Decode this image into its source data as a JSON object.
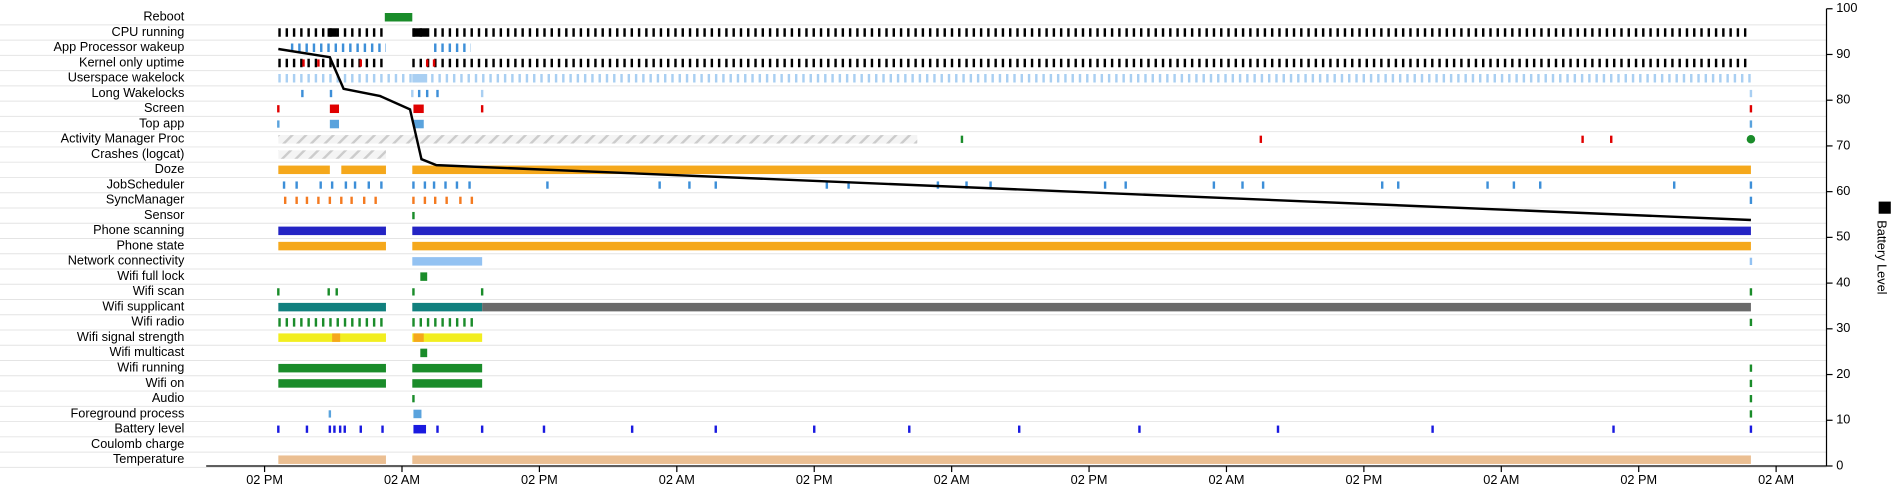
{
  "chart_data": {
    "type": "timeline",
    "xlim": [
      -5.1,
      136.4
    ],
    "xticks": [
      {
        "value": 0,
        "label": "02 PM"
      },
      {
        "value": 12,
        "label": "02 AM"
      },
      {
        "value": 24,
        "label": "02 PM"
      },
      {
        "value": 36,
        "label": "02 AM"
      },
      {
        "value": 48,
        "label": "02 PM"
      },
      {
        "value": 60,
        "label": "02 AM"
      },
      {
        "value": 72,
        "label": "02 PM"
      },
      {
        "value": 84,
        "label": "02 AM"
      },
      {
        "value": 96,
        "label": "02 PM"
      },
      {
        "value": 108,
        "label": "02 AM"
      },
      {
        "value": 120,
        "label": "02 PM"
      },
      {
        "value": 132,
        "label": "02 AM"
      }
    ],
    "y2lim": [
      0,
      100
    ],
    "y2ticks": [
      0,
      10,
      20,
      30,
      40,
      50,
      60,
      70,
      80,
      90,
      100
    ],
    "series": [
      {
        "name": "Battery Level",
        "color": "#000000",
        "axis": "y2",
        "x": [
          1.2,
          5.7,
          6.9,
          10.1,
          12.7,
          13.7,
          15.0,
          129.8
        ],
        "values": [
          91.2,
          89.4,
          82.5,
          80.9,
          78,
          67.1,
          65.8,
          53.8
        ]
      }
    ],
    "rows": [
      {
        "name": "Reboot",
        "layers": [
          {
            "color": "#1a8c2a",
            "segments": [
              [
                10.5,
                12.9
              ]
            ]
          }
        ]
      },
      {
        "name": "CPU running",
        "layers": [
          {
            "color": "#000000",
            "dashed": true,
            "segments": [
              [
                1.2,
                10.6
              ],
              [
                12.9,
                129.4
              ]
            ]
          },
          {
            "color": "#000000",
            "segments": [
              [
                5.5,
                6.3
              ],
              [
                13.0,
                14.2
              ]
            ]
          }
        ]
      },
      {
        "name": "App Processor wakeup",
        "layers": [
          {
            "color": "#3d8fd8",
            "dashed": true,
            "segments": [
              [
                2.3,
                10.6
              ],
              [
                14.8,
                18.0
              ]
            ]
          }
        ]
      },
      {
        "name": "Kernel only uptime",
        "layers": [
          {
            "color": "#000000",
            "dashed": true,
            "segments": [
              [
                1.2,
                10.6
              ],
              [
                12.9,
                129.8
              ]
            ]
          },
          {
            "color": "#e00000",
            "events": [
              3.4,
              4.7,
              8.4,
              14.2,
              14.8
            ]
          }
        ]
      },
      {
        "name": "Userspace wakelock",
        "layers": [
          {
            "color": "#a9cff2",
            "dashed": true,
            "segments": [
              [
                1.2,
                129.8
              ]
            ]
          },
          {
            "color": "#a9cff2",
            "segments": [
              [
                12.9,
                14.2
              ]
            ]
          }
        ]
      },
      {
        "name": "Long Wakelocks",
        "layers": [
          {
            "color": "#3d8fd8",
            "events": [
              3.3,
              5.8,
              13.5,
              14.2,
              15.1
            ]
          },
          {
            "color": "#a9cff2",
            "events": [
              12.9,
              19.0,
              129.8
            ]
          }
        ]
      },
      {
        "name": "Screen",
        "layers": [
          {
            "color": "#e00000",
            "segments": [
              [
                5.7,
                6.5
              ],
              [
                13.0,
                13.9
              ]
            ],
            "events": [
              1.2,
              19.0,
              129.8
            ]
          }
        ]
      },
      {
        "name": "Top app",
        "layers": [
          {
            "color": "#5aa3dd",
            "segments": [
              [
                5.7,
                6.5
              ],
              [
                13.0,
                13.9
              ]
            ],
            "events": [
              1.2,
              129.8
            ]
          }
        ]
      },
      {
        "name": "Activity Manager Proc",
        "layers": [
          {
            "color": "#cccccc",
            "hatched": true,
            "segments": [
              [
                1.2,
                57.0
              ]
            ]
          },
          {
            "color": "#1a8c2a",
            "events": [
              60.9
            ]
          },
          {
            "color": "#e00000",
            "events": [
              87.0,
              115.1,
              117.6
            ]
          },
          {
            "color": "#1a8c2a",
            "shape": "circle",
            "events": [
              129.8
            ]
          }
        ]
      },
      {
        "name": "Crashes (logcat)",
        "layers": [
          {
            "color": "#cccccc",
            "hatched": true,
            "segments": [
              [
                1.2,
                10.6
              ]
            ]
          }
        ]
      },
      {
        "name": "Doze",
        "layers": [
          {
            "color": "#f5a81c",
            "segments": [
              [
                1.2,
                5.7
              ],
              [
                6.7,
                10.6
              ],
              [
                12.9,
                129.8
              ]
            ]
          }
        ]
      },
      {
        "name": "JobScheduler",
        "layers": [
          {
            "color": "#3d8fd8",
            "events": [
              1.7,
              2.8,
              4.9,
              5.9,
              7.1,
              7.9,
              9.1,
              10.2,
              13.0,
              14.0,
              14.8,
              15.8,
              16.8,
              17.9,
              24.7,
              34.5,
              37.1,
              39.4,
              49.1,
              51.0,
              58.8,
              61.3,
              63.4,
              73.4,
              75.2,
              82.9,
              85.4,
              87.2,
              97.6,
              99.0,
              106.8,
              109.1,
              111.4,
              123.1,
              129.8
            ]
          }
        ]
      },
      {
        "name": "SyncManager",
        "layers": [
          {
            "color": "#f47a20",
            "events": [
              1.8,
              2.8,
              3.7,
              4.7,
              5.7,
              6.7,
              7.6,
              8.7,
              9.7,
              13.0,
              14.0,
              14.9,
              15.9,
              17.1,
              18.1
            ]
          },
          {
            "color": "#3d8fd8",
            "events": [
              129.8
            ]
          }
        ]
      },
      {
        "name": "Sensor",
        "layers": [
          {
            "color": "#1a8c2a",
            "events": [
              13.0
            ]
          }
        ]
      },
      {
        "name": "Phone scanning",
        "layers": [
          {
            "color": "#2424c4",
            "segments": [
              [
                1.2,
                10.6
              ],
              [
                12.9,
                129.8
              ]
            ]
          }
        ]
      },
      {
        "name": "Phone state",
        "layers": [
          {
            "color": "#f5a81c",
            "segments": [
              [
                1.2,
                10.6
              ],
              [
                12.9,
                129.8
              ]
            ]
          }
        ]
      },
      {
        "name": "Network connectivity",
        "layers": [
          {
            "color": "#93c2f2",
            "segments": [
              [
                12.9,
                19.0
              ]
            ],
            "events": [
              129.8
            ]
          }
        ]
      },
      {
        "name": "Wifi full lock",
        "layers": [
          {
            "color": "#1a8c2a",
            "segments": [
              [
                13.6,
                14.2
              ]
            ]
          }
        ]
      },
      {
        "name": "Wifi scan",
        "layers": [
          {
            "color": "#1a8c2a",
            "events": [
              1.2,
              5.6,
              6.3,
              13.0,
              19.0,
              129.8
            ]
          }
        ]
      },
      {
        "name": "Wifi supplicant",
        "layers": [
          {
            "color": "#11807e",
            "segments": [
              [
                1.2,
                10.6
              ],
              [
                12.9,
                19.0
              ]
            ]
          },
          {
            "color": "#6a6a6a",
            "segments": [
              [
                19.0,
                129.8
              ]
            ]
          }
        ]
      },
      {
        "name": "Wifi radio",
        "layers": [
          {
            "color": "#1a8c2a",
            "dashed": true,
            "segments": [
              [
                1.2,
                10.6
              ],
              [
                12.9,
                18.5
              ]
            ]
          },
          {
            "color": "#1a8c2a",
            "events": [
              129.8
            ]
          }
        ]
      },
      {
        "name": "Wifi signal strength",
        "layers": [
          {
            "color": "#f2ee20",
            "segments": [
              [
                1.2,
                10.6
              ],
              [
                12.9,
                19.0
              ]
            ]
          },
          {
            "color": "#f5a81c",
            "segments": [
              [
                5.9,
                6.6
              ],
              [
                13.0,
                13.9
              ]
            ]
          }
        ]
      },
      {
        "name": "Wifi multicast",
        "layers": [
          {
            "color": "#1a8c2a",
            "segments": [
              [
                13.6,
                14.2
              ]
            ]
          }
        ]
      },
      {
        "name": "Wifi running",
        "layers": [
          {
            "color": "#1a8c2a",
            "segments": [
              [
                1.2,
                10.6
              ],
              [
                12.9,
                19.0
              ]
            ],
            "events": [
              129.8
            ]
          }
        ]
      },
      {
        "name": "Wifi on",
        "layers": [
          {
            "color": "#1a8c2a",
            "segments": [
              [
                1.2,
                10.6
              ],
              [
                12.9,
                19.0
              ]
            ],
            "events": [
              129.8
            ]
          }
        ]
      },
      {
        "name": "Audio",
        "layers": [
          {
            "color": "#1a8c2a",
            "events": [
              13.0,
              129.8
            ]
          }
        ]
      },
      {
        "name": "Foreground process",
        "layers": [
          {
            "color": "#5aa3dd",
            "segments": [
              [
                13.0,
                13.7
              ]
            ],
            "events": [
              5.7
            ]
          },
          {
            "color": "#1a8c2a",
            "events": [
              129.8
            ]
          }
        ]
      },
      {
        "name": "Battery level",
        "layers": [
          {
            "color": "#1a1ae0",
            "segments": [
              [
                13.0,
                14.1
              ]
            ],
            "events": [
              1.2,
              3.7,
              5.7,
              6.1,
              6.6,
              7.0,
              8.4,
              10.3,
              15.1,
              19.0,
              24.4,
              32.1,
              39.4,
              48.0,
              56.3,
              65.9,
              76.4,
              88.5,
              102.0,
              117.8,
              129.8
            ]
          }
        ]
      },
      {
        "name": "Coulomb charge",
        "layers": []
      },
      {
        "name": "Temperature",
        "layers": [
          {
            "color": "#ebbf92",
            "segments": [
              [
                1.2,
                10.6
              ],
              [
                12.9,
                129.8
              ]
            ]
          }
        ]
      }
    ]
  }
}
